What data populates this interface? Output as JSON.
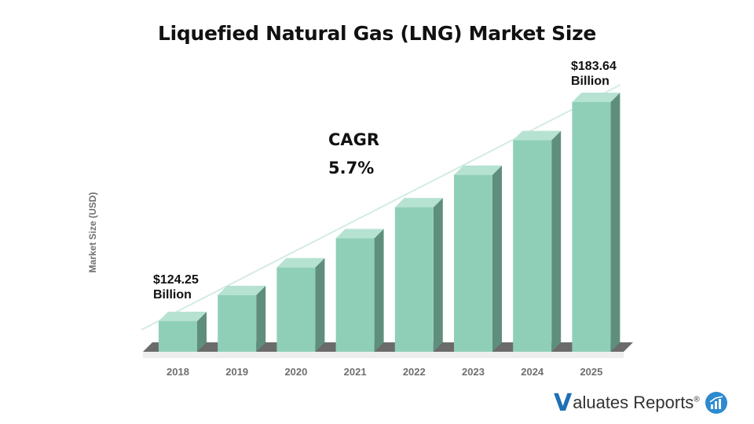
{
  "chart_data": {
    "type": "bar",
    "title": "Liquefied Natural Gas (LNG) Market Size",
    "ylabel": "Market Size (USD)",
    "xlabel": "",
    "categories": [
      "2018",
      "2019",
      "2020",
      "2021",
      "2022",
      "2023",
      "2024",
      "2025"
    ],
    "values": [
      124.25,
      131.3,
      138.8,
      146.7,
      155.1,
      163.9,
      173.3,
      183.64
    ],
    "unit": "USD Billion",
    "annotations": {
      "cagr_label": "CAGR",
      "cagr_value": "5.7%",
      "first_value_label": "$124.25",
      "first_value_unit": "Billion",
      "last_value_label": "$183.64",
      "last_value_unit": "Billion"
    },
    "grid": false,
    "legend": "none",
    "colors": {
      "bar_front": "#8fcfb8",
      "bar_side": "#5f8f7c",
      "bar_top": "#b6e2d1",
      "trend": "#d4ece2"
    }
  },
  "brand": {
    "logo_initial": "V",
    "logo_rest": "aluates Reports",
    "logo_mark": "®"
  }
}
